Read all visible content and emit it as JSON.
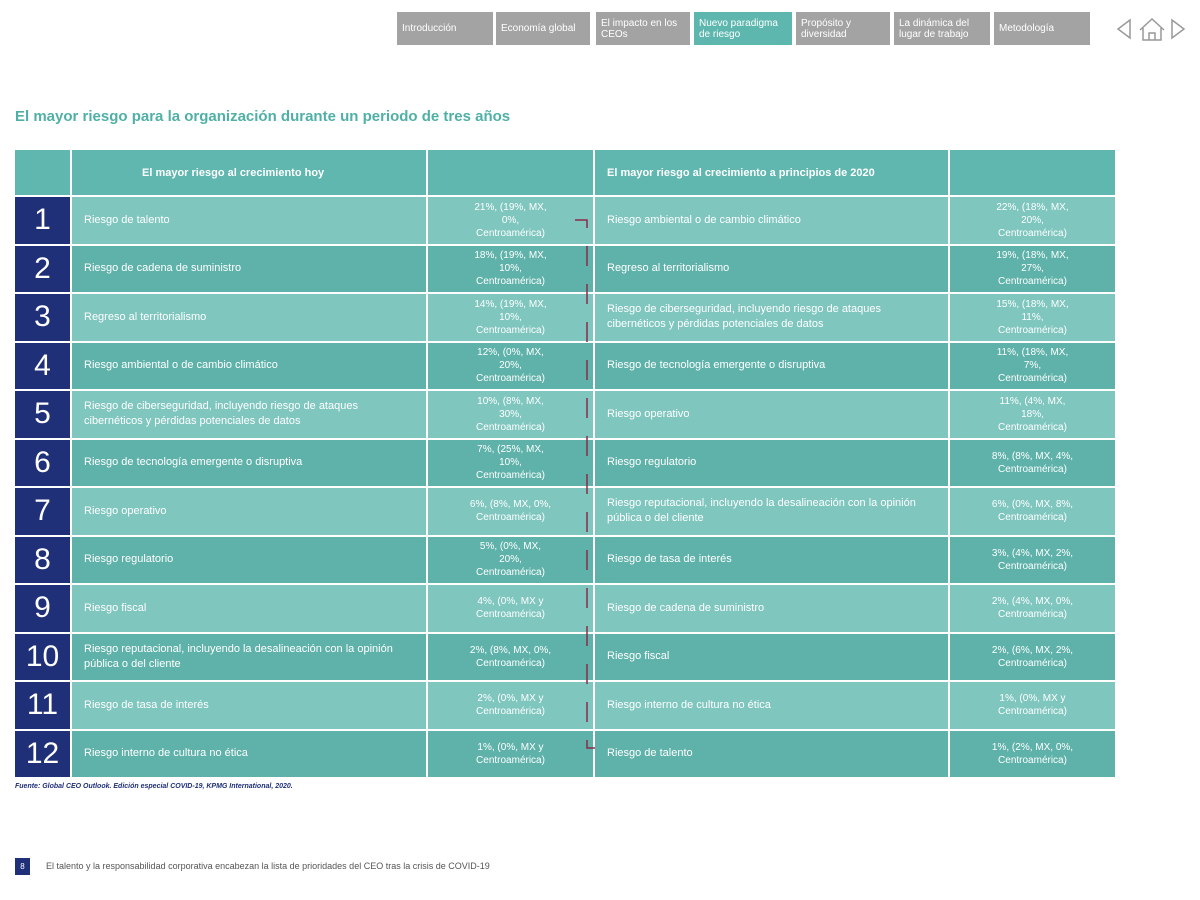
{
  "nav": {
    "tabs": [
      "Introducción",
      "Economía global",
      "El impacto en los CEOs",
      "Nuevo paradigma de riesgo",
      "Propósito y diversidad",
      "La dinámica del lugar de trabajo",
      "Metodología"
    ],
    "active": 3
  },
  "title": "El mayor riesgo para la organización durante un periodo de tres años",
  "table": {
    "headers": [
      "El mayor riesgo al crecimiento hoy",
      "El mayor riesgo al crecimiento a principios de 2020"
    ],
    "rows": [
      {
        "number": "1",
        "today": "Riesgo de talento",
        "today_value": "21%, (19%, MX, 0%, Centroamérica)",
        "early_2020": "Riesgo ambiental o de cambio climático",
        "early_2020_value": "22%, (18%, MX, 20%, Centroamérica)"
      },
      {
        "number": "2",
        "today": "Riesgo de cadena de suministro",
        "today_value": "18%, (19%, MX, 10%, Centroamérica)",
        "early_2020": "Regreso al territorialismo",
        "early_2020_value": "19%, (18%, MX, 27%, Centroamérica)"
      },
      {
        "number": "3",
        "today": "Regreso al territorialismo",
        "today_value": "14%, (19%, MX, 10%, Centroamérica)",
        "early_2020": "Riesgo de ciberseguridad, incluyendo riesgo de ataques cibernéticos y pérdidas potenciales de datos",
        "early_2020_value": "15%, (18%, MX, 11%, Centroamérica)"
      },
      {
        "number": "4",
        "today": "Riesgo ambiental o de cambio climático",
        "today_value": "12%, (0%, MX, 20%, Centroamérica)",
        "early_2020": "Riesgo de tecnología emergente o disruptiva",
        "early_2020_value": "11%, (18%, MX, 7%, Centroamérica)"
      },
      {
        "number": "5",
        "today": "Riesgo de ciberseguridad, incluyendo riesgo de ataques cibernéticos y pérdidas potenciales de datos",
        "today_value": "10%, (8%, MX, 30%, Centroamérica)",
        "early_2020": "Riesgo operativo",
        "early_2020_value": "11%, (4%, MX, 18%, Centroamérica)"
      },
      {
        "number": "6",
        "today": "Riesgo de tecnología emergente o disruptiva",
        "today_value": "7%, (25%, MX, 10%, Centroamérica)",
        "early_2020": "Riesgo regulatorio",
        "early_2020_value": "8%, (8%, MX, 4%, Centroamérica)"
      },
      {
        "number": "7",
        "today": "Riesgo operativo",
        "today_value": "6%, (8%, MX, 0%, Centroamérica)",
        "early_2020": "Riesgo reputacional, incluyendo la desalineación con la opinión pública o del cliente",
        "early_2020_value": "6%, (0%, MX, 8%, Centroamérica)"
      },
      {
        "number": "8",
        "today": "Riesgo regulatorio",
        "today_value": "5%, (0%, MX, 20%, Centroamérica)",
        "early_2020": "Riesgo de tasa de interés",
        "early_2020_value": "3%, (4%, MX, 2%, Centroamérica)"
      },
      {
        "number": "9",
        "today": "Riesgo fiscal",
        "today_value": "4%, (0%, MX y Centroamérica)",
        "early_2020": "Riesgo de cadena de suministro",
        "early_2020_value": "2%, (4%, MX, 0%, Centroamérica)"
      },
      {
        "number": "10",
        "today": "Riesgo reputacional, incluyendo la desalineación con la opinión pública o del cliente",
        "today_value": "2%, (8%, MX, 0%, Centroamérica)",
        "early_2020": "Riesgo fiscal",
        "early_2020_value": "2%, (6%, MX, 2%, Centroamérica)"
      },
      {
        "number": "11",
        "today": "Riesgo de tasa de interés",
        "today_value": "2%, (0%, MX y Centroamérica)",
        "early_2020": "Riesgo interno de cultura no ética",
        "early_2020_value": "1%, (0%, MX y Centroamérica)"
      },
      {
        "number": "12",
        "today": "Riesgo interno de cultura no ética",
        "today_value": "1%, (0%, MX y Centroamérica)",
        "early_2020": "Riesgo de talento",
        "early_2020_value": "1%, (2%, MX, 0%, Centroamérica)"
      }
    ]
  },
  "source": "Fuente: Global CEO Outlook. Edición especial COVID-19, KPMG International, 2020.",
  "footer": {
    "page": "8",
    "text": "El talento y la responsabilidad corporativa encabezan la lista de prioridades del CEO tras la crisis de COVID-19"
  }
}
